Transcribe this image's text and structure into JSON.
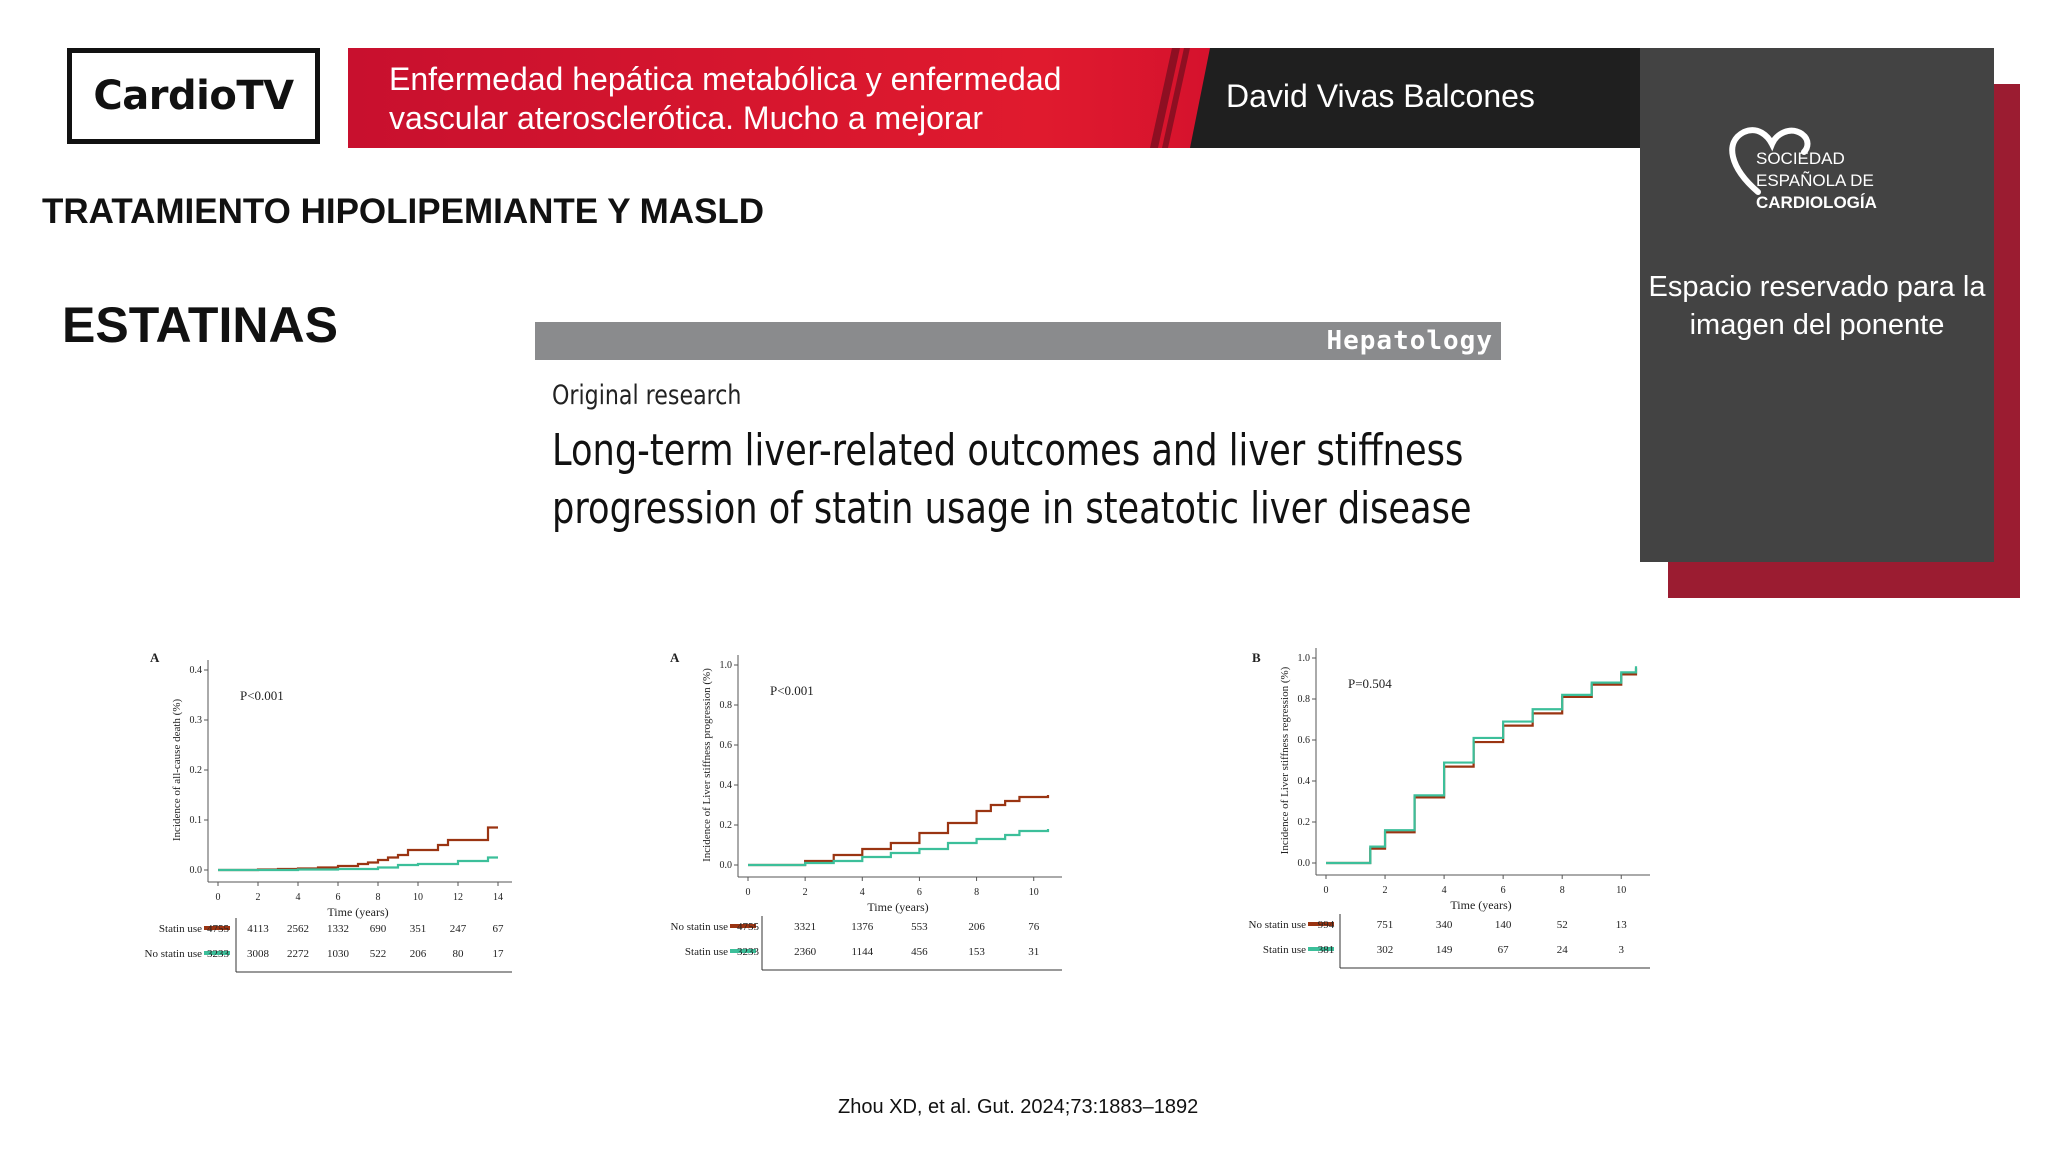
{
  "header": {
    "logo_text": "CardioTV",
    "talk_title": "Enfermedad hepática metabólica y enfermedad vascular aterosclerótica. Mucho a mejorar",
    "speaker_name": "David Vivas Balcones",
    "accent_red": "#c8102e",
    "dark_bar": "#1f1f1f"
  },
  "speaker_panel": {
    "society_lines": [
      "SOCIEDAD",
      "ESPAÑOLA DE",
      "CARDIOLOGÍA"
    ],
    "placeholder": "Espacio reservado para la imagen del ponente",
    "panel_color": "#434343",
    "side_color": "#9b1c31"
  },
  "slide": {
    "section_title": "TRATAMIENTO HIPOLIPEMIANTE Y MASLD",
    "subsection": "ESTATINAS",
    "journal": "Hepatology",
    "article_type": "Original research",
    "article_title": "Long-term liver-related outcomes and liver stiffness progression of statin usage in steatotic liver disease",
    "citation": "Zhou XD, et al. Gut. 2024;73:1883–1892"
  },
  "chart_data": [
    {
      "type": "line",
      "panel": "A",
      "pvalue": "P<0.001",
      "ylabel": "Incidence of all-cause death (%)",
      "xlabel": "Time (years)",
      "xlim": [
        0,
        14
      ],
      "ylim": [
        0,
        0.4
      ],
      "xticks": [
        "0",
        "2",
        "4",
        "6",
        "8",
        "10",
        "12",
        "14"
      ],
      "yticks": [
        "0.0",
        "0.1",
        "0.2",
        "0.3",
        "0.4"
      ],
      "series": [
        {
          "name": "Statin use",
          "color": "#9a3412",
          "x": [
            0,
            2,
            3,
            4,
            5,
            6,
            7,
            7.5,
            8,
            8.5,
            9,
            9.5,
            10,
            11,
            11.5,
            12,
            12.5,
            13,
            13.5,
            14
          ],
          "y": [
            0,
            0.001,
            0.002,
            0.003,
            0.005,
            0.008,
            0.012,
            0.015,
            0.02,
            0.025,
            0.03,
            0.04,
            0.04,
            0.05,
            0.06,
            0.06,
            0.06,
            0.06,
            0.085,
            0.085
          ]
        },
        {
          "name": "No statin use",
          "color": "#3cbf9a",
          "x": [
            0,
            2,
            4,
            6,
            8,
            9,
            10,
            11,
            12,
            13,
            13.5,
            14
          ],
          "y": [
            0,
            0,
            0.001,
            0.002,
            0.005,
            0.01,
            0.012,
            0.012,
            0.018,
            0.018,
            0.025,
            0.025
          ]
        }
      ],
      "risk_table": {
        "times": [
          "0",
          "2",
          "4",
          "6",
          "8",
          "10",
          "12",
          "14"
        ],
        "rows": [
          {
            "label": "Statin use",
            "values": [
              "4755",
              "4113",
              "2562",
              "1332",
              "690",
              "351",
              "247",
              "67"
            ]
          },
          {
            "label": "No statin use",
            "values": [
              "3233",
              "3008",
              "2272",
              "1030",
              "522",
              "206",
              "80",
              "17"
            ]
          }
        ]
      }
    },
    {
      "type": "line",
      "panel": "A",
      "pvalue": "P<0.001",
      "ylabel": "Incidence of Liver stiffness progression (%)",
      "xlabel": "Time (years)",
      "xlim": [
        0,
        10.5
      ],
      "ylim": [
        0,
        1.0
      ],
      "xticks": [
        "0",
        "2",
        "4",
        "6",
        "8",
        "10"
      ],
      "yticks": [
        "0.0",
        "0.2",
        "0.4",
        "0.6",
        "0.8",
        "1.0"
      ],
      "series": [
        {
          "name": "No statin use",
          "color": "#9a3412",
          "x": [
            0,
            1,
            2,
            3,
            4,
            5,
            6,
            7,
            8,
            8.5,
            9,
            9.5,
            10,
            10.5
          ],
          "y": [
            0,
            0,
            0.02,
            0.05,
            0.08,
            0.11,
            0.16,
            0.21,
            0.27,
            0.3,
            0.32,
            0.34,
            0.34,
            0.35
          ]
        },
        {
          "name": "Statin use",
          "color": "#3cbf9a",
          "x": [
            0,
            1,
            2,
            3,
            4,
            5,
            6,
            7,
            8,
            9,
            9.5,
            10,
            10.5
          ],
          "y": [
            0,
            0,
            0.01,
            0.02,
            0.04,
            0.06,
            0.08,
            0.11,
            0.13,
            0.15,
            0.17,
            0.17,
            0.18
          ]
        }
      ],
      "risk_table": {
        "times": [
          "0",
          "2",
          "4",
          "6",
          "8",
          "10"
        ],
        "rows": [
          {
            "label": "No statin use",
            "values": [
              "4755",
              "3321",
              "1376",
              "553",
              "206",
              "76"
            ]
          },
          {
            "label": "Statin use",
            "values": [
              "3233",
              "2360",
              "1144",
              "456",
              "153",
              "31"
            ]
          }
        ]
      }
    },
    {
      "type": "line",
      "panel": "B",
      "pvalue": "P=0.504",
      "ylabel": "Incidence of Liver stiffness regression (%)",
      "xlabel": "Time (years)",
      "xlim": [
        0,
        10.5
      ],
      "ylim": [
        0,
        1.0
      ],
      "xticks": [
        "0",
        "2",
        "4",
        "6",
        "8",
        "10"
      ],
      "yticks": [
        "0.0",
        "0.2",
        "0.4",
        "0.6",
        "0.8",
        "1.0"
      ],
      "series": [
        {
          "name": "No statin use",
          "color": "#9a3412",
          "x": [
            0,
            1,
            1.5,
            2,
            3,
            4,
            5,
            6,
            7,
            8,
            9,
            10,
            10.5
          ],
          "y": [
            0,
            0,
            0.07,
            0.15,
            0.32,
            0.47,
            0.59,
            0.67,
            0.73,
            0.81,
            0.87,
            0.92,
            0.95
          ]
        },
        {
          "name": "Statin use",
          "color": "#3cbf9a",
          "x": [
            0,
            1,
            1.5,
            2,
            3,
            4,
            5,
            6,
            7,
            8,
            9,
            10,
            10.5
          ],
          "y": [
            0,
            0,
            0.08,
            0.16,
            0.33,
            0.49,
            0.61,
            0.69,
            0.75,
            0.82,
            0.88,
            0.93,
            0.96
          ]
        }
      ],
      "risk_table": {
        "times": [
          "0",
          "2",
          "4",
          "6",
          "8",
          "10"
        ],
        "rows": [
          {
            "label": "No statin use",
            "values": [
              "994",
              "751",
              "340",
              "140",
              "52",
              "13"
            ]
          },
          {
            "label": "Statin use",
            "values": [
              "381",
              "302",
              "149",
              "67",
              "24",
              "3"
            ]
          }
        ]
      }
    }
  ]
}
